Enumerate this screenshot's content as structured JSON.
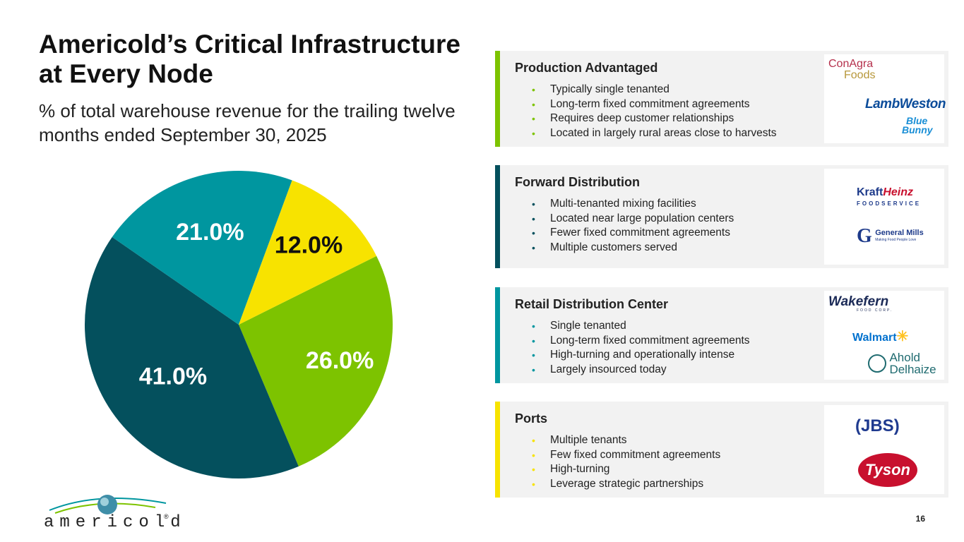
{
  "slide": {
    "title": "Americold’s Critical Infrastructure at Every Node",
    "subtitle": "% of total warehouse revenue for the trailing twelve months ended September 30, 2025",
    "page_number": "16"
  },
  "brand": {
    "name": "americold",
    "registered": "®"
  },
  "chart_data": {
    "type": "pie",
    "title": "",
    "categories": [
      "Production Advantaged",
      "Forward Distribution",
      "Retail Distribution Center",
      "Ports"
    ],
    "values": [
      26.0,
      41.0,
      21.0,
      12.0
    ],
    "labels": [
      "26.0%",
      "41.0%",
      "21.0%",
      "12.0%"
    ],
    "colors": [
      "#7dc300",
      "#04505d",
      "#00969f",
      "#f7e300"
    ],
    "label_colors": [
      "#ffffff",
      "#ffffff",
      "#ffffff",
      "#111111"
    ]
  },
  "panels": [
    {
      "title": "Production Advantaged",
      "color": "#7dc300",
      "bullets": [
        "Typically single tenanted",
        "Long-term fixed commitment agreements",
        "Requires deep customer relationships",
        "Located in largely rural areas close to harvests"
      ],
      "logos": [
        "ConAgra",
        "Foods",
        "LambWeston",
        "Blue",
        "Bunny"
      ]
    },
    {
      "title": "Forward Distribution",
      "color": "#04505d",
      "bullets": [
        "Multi-tenanted mixing facilities",
        "Located near large population centers",
        "Fewer fixed commitment agreements",
        "Multiple customers served"
      ],
      "logos": [
        "Kraft",
        "Heinz",
        "FOODSERVICE",
        "General Mills",
        "Making Food People Love"
      ]
    },
    {
      "title": "Retail Distribution Center",
      "color": "#00969f",
      "bullets": [
        "Single tenanted",
        "Long-term fixed commitment agreements",
        "High-turning and operationally intense",
        "Largely insourced today"
      ],
      "logos": [
        "Wakefern",
        "FOOD CORP.",
        "Walmart",
        "Ahold",
        "Delhaize"
      ]
    },
    {
      "title": "Ports",
      "color": "#f7e300",
      "bullets": [
        "Multiple tenants",
        "Few fixed commitment agreements",
        "High-turning",
        "Leverage strategic partnerships"
      ],
      "logos": [
        "JBS",
        "Tyson"
      ]
    }
  ]
}
